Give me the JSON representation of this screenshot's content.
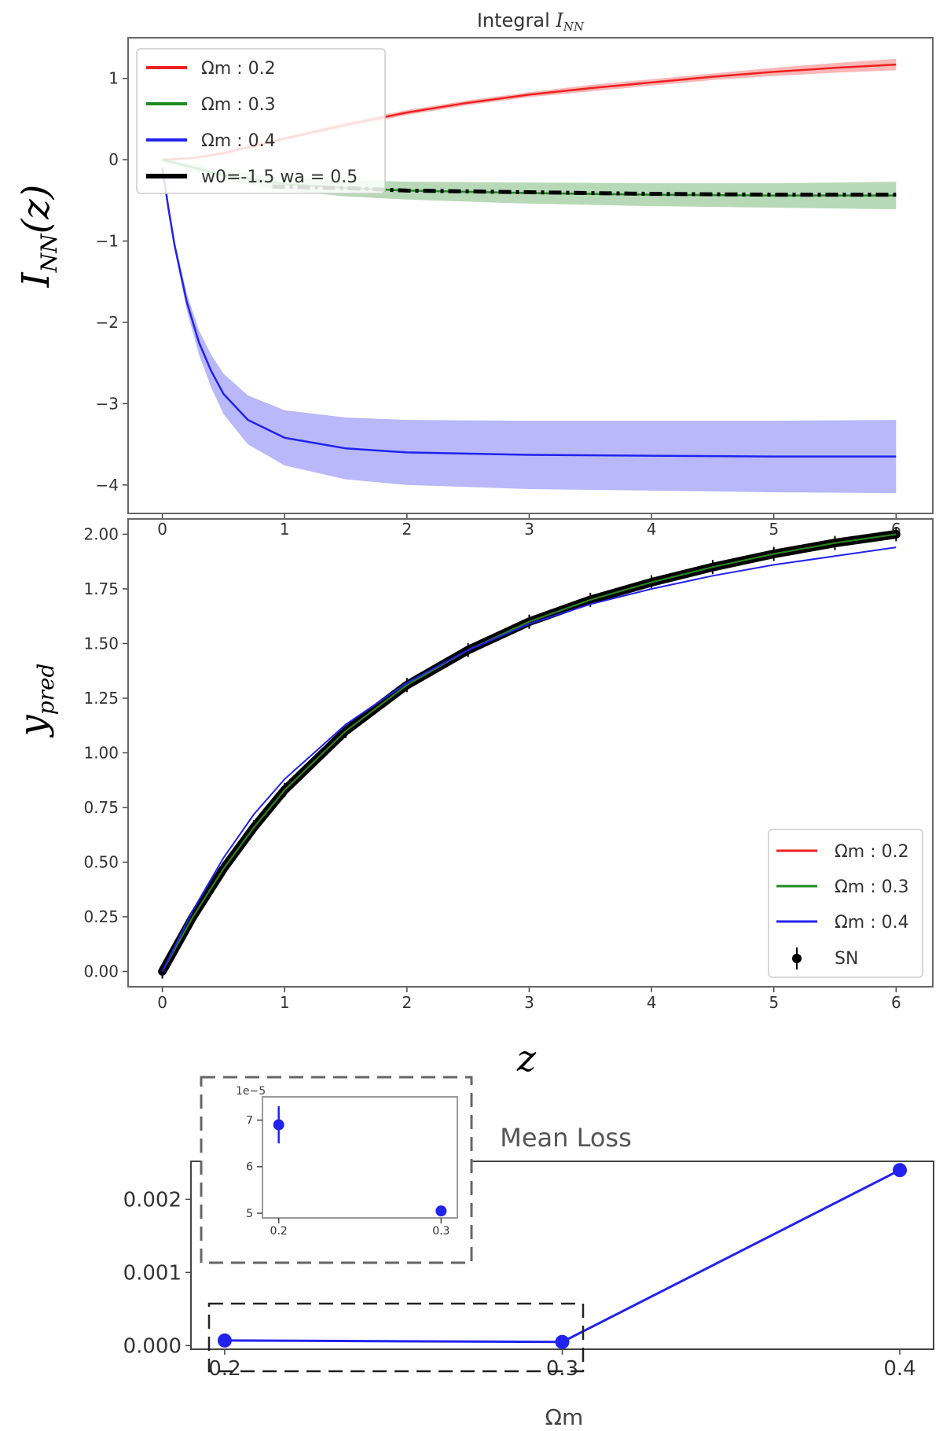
{
  "chart_data": [
    {
      "type": "line",
      "title": "Integral I_NN",
      "title_main": "Integral ",
      "title_sym": "I",
      "title_sub": "NN",
      "ylabel": "I_NN(z)",
      "ylabel_main": "I",
      "ylabel_sub": "NN",
      "ylabel_arg": "(z)",
      "xlim": [
        -0.28,
        6.3
      ],
      "ylim": [
        -4.35,
        1.5
      ],
      "x_ticks": [
        0,
        1,
        2,
        3,
        4,
        5,
        6
      ],
      "y_ticks": [
        1,
        0,
        -1,
        -2,
        -3,
        -4
      ],
      "y_tick_labels": [
        "1",
        "0",
        "−1",
        "−2",
        "−3",
        "−4"
      ],
      "legend_position": "upper-left",
      "series": [
        {
          "name": "Ωm : 0.2",
          "color": "#f02020",
          "x": [
            0,
            0.25,
            0.5,
            0.75,
            1,
            1.5,
            2,
            2.5,
            3,
            3.5,
            4,
            4.5,
            5,
            5.5,
            6
          ],
          "y": [
            0,
            0.02,
            0.08,
            0.17,
            0.26,
            0.43,
            0.58,
            0.7,
            0.8,
            0.88,
            0.95,
            1.02,
            1.08,
            1.13,
            1.17
          ],
          "band": [
            0.01,
            0.01,
            0.02,
            0.02,
            0.02,
            0.03,
            0.03,
            0.03,
            0.03,
            0.04,
            0.04,
            0.04,
            0.05,
            0.06,
            0.07
          ]
        },
        {
          "name": "Ωm : 0.3",
          "color": "#1f8a1f",
          "x": [
            0,
            0.5,
            1,
            1.5,
            2,
            3,
            4,
            5,
            6
          ],
          "y": [
            0,
            -0.19,
            -0.3,
            -0.35,
            -0.38,
            -0.41,
            -0.43,
            -0.44,
            -0.44
          ],
          "band": [
            0.02,
            0.06,
            0.08,
            0.1,
            0.11,
            0.13,
            0.14,
            0.15,
            0.17
          ]
        },
        {
          "name": "Ωm : 0.4",
          "color": "#2222ee",
          "x": [
            0,
            0.05,
            0.1,
            0.2,
            0.3,
            0.4,
            0.5,
            0.7,
            1,
            1.5,
            2,
            3,
            4,
            5,
            6
          ],
          "y": [
            -0.1,
            -0.6,
            -1.05,
            -1.75,
            -2.25,
            -2.6,
            -2.88,
            -3.2,
            -3.42,
            -3.55,
            -3.6,
            -3.63,
            -3.64,
            -3.65,
            -3.65
          ],
          "band": [
            0.0,
            0.02,
            0.05,
            0.1,
            0.15,
            0.2,
            0.25,
            0.3,
            0.34,
            0.38,
            0.4,
            0.42,
            0.43,
            0.44,
            0.45
          ]
        },
        {
          "name": "w0=-1.5  wa = 0.5",
          "color": "#000000",
          "style": "dashdot",
          "x": [
            0.9,
            1.5,
            2,
            3,
            4,
            5,
            6
          ],
          "y": [
            -0.33,
            -0.35,
            -0.38,
            -0.4,
            -0.42,
            -0.43,
            -0.43
          ]
        }
      ],
      "legend_w0_label": "w0=-1.5  wa = 0.5"
    },
    {
      "type": "line",
      "ylabel": "y_pred",
      "ylabel_main": "y",
      "ylabel_sub": "pred",
      "xlabel": "z",
      "xlim": [
        -0.28,
        6.3
      ],
      "ylim": [
        -0.07,
        2.07
      ],
      "x_ticks": [
        0,
        1,
        2,
        3,
        4,
        5,
        6
      ],
      "y_ticks": [
        0.0,
        0.25,
        0.5,
        0.75,
        1.0,
        1.25,
        1.5,
        1.75,
        2.0
      ],
      "y_tick_labels": [
        "0.00",
        "0.25",
        "0.50",
        "0.75",
        "1.00",
        "1.25",
        "1.50",
        "1.75",
        "2.00"
      ],
      "legend_position": "lower-right",
      "series": [
        {
          "name": "Ωm : 0.2",
          "color": "#f02020",
          "x": [
            0,
            0.25,
            0.5,
            0.75,
            1,
            1.5,
            2,
            2.5,
            3,
            3.5,
            4,
            4.5,
            5,
            5.5,
            6
          ],
          "y": [
            0,
            0.25,
            0.47,
            0.66,
            0.83,
            1.1,
            1.31,
            1.47,
            1.6,
            1.7,
            1.78,
            1.85,
            1.91,
            1.96,
            2.0
          ]
        },
        {
          "name": "Ωm : 0.3",
          "color": "#1f8a1f",
          "x": [
            0,
            0.25,
            0.5,
            0.75,
            1,
            1.5,
            2,
            2.5,
            3,
            3.5,
            4,
            4.5,
            5,
            5.5,
            6
          ],
          "y": [
            0,
            0.25,
            0.47,
            0.66,
            0.83,
            1.1,
            1.31,
            1.47,
            1.6,
            1.7,
            1.78,
            1.85,
            1.91,
            1.96,
            2.0
          ]
        },
        {
          "name": "Ωm : 0.4",
          "color": "#2222ee",
          "x": [
            0,
            0.25,
            0.5,
            0.75,
            1,
            1.5,
            2,
            2.5,
            3,
            3.5,
            4,
            4.5,
            5,
            5.5,
            6
          ],
          "y": [
            0,
            0.28,
            0.52,
            0.72,
            0.88,
            1.13,
            1.32,
            1.47,
            1.59,
            1.68,
            1.75,
            1.81,
            1.86,
            1.9,
            1.94
          ]
        },
        {
          "name": "SN",
          "color": "#000000",
          "marker": "errorbar",
          "x": [
            0,
            0.25,
            0.5,
            0.75,
            1,
            1.5,
            2,
            2.5,
            3,
            3.5,
            4,
            4.5,
            5,
            5.5,
            6
          ],
          "y": [
            0,
            0.25,
            0.47,
            0.66,
            0.83,
            1.1,
            1.31,
            1.47,
            1.6,
            1.7,
            1.78,
            1.85,
            1.91,
            1.96,
            2.0
          ]
        }
      ]
    },
    {
      "type": "line",
      "title": "Mean Loss",
      "xlabel": "Ωm",
      "xlim": [
        0.19,
        0.41
      ],
      "ylim": [
        -5e-05,
        0.00252
      ],
      "x_ticks": [
        0.2,
        0.3,
        0.4
      ],
      "x_tick_labels": [
        "0.2",
        "0.3",
        "0.4"
      ],
      "y_ticks": [
        0.0,
        0.001,
        0.002
      ],
      "y_tick_labels": [
        "0.000",
        "0.001",
        "0.002"
      ],
      "color": "#2222ee",
      "x": [
        0.2,
        0.3,
        0.4
      ],
      "y": [
        6.9e-05,
        5e-05,
        0.0024
      ]
    },
    {
      "type": "scatter",
      "name": "inset",
      "offset_label": "1e−5",
      "xlim": [
        0.19,
        0.31
      ],
      "ylim": [
        4.9,
        7.5
      ],
      "x_ticks": [
        0.2,
        0.3
      ],
      "x_tick_labels": [
        "0.2",
        "0.3"
      ],
      "y_ticks": [
        5,
        6,
        7
      ],
      "y_tick_labels": [
        "5",
        "6",
        "7"
      ],
      "color": "#2222ee",
      "x": [
        0.2,
        0.3
      ],
      "y": [
        6.9,
        5.05
      ],
      "yerr": [
        0.4,
        0.0
      ]
    }
  ]
}
